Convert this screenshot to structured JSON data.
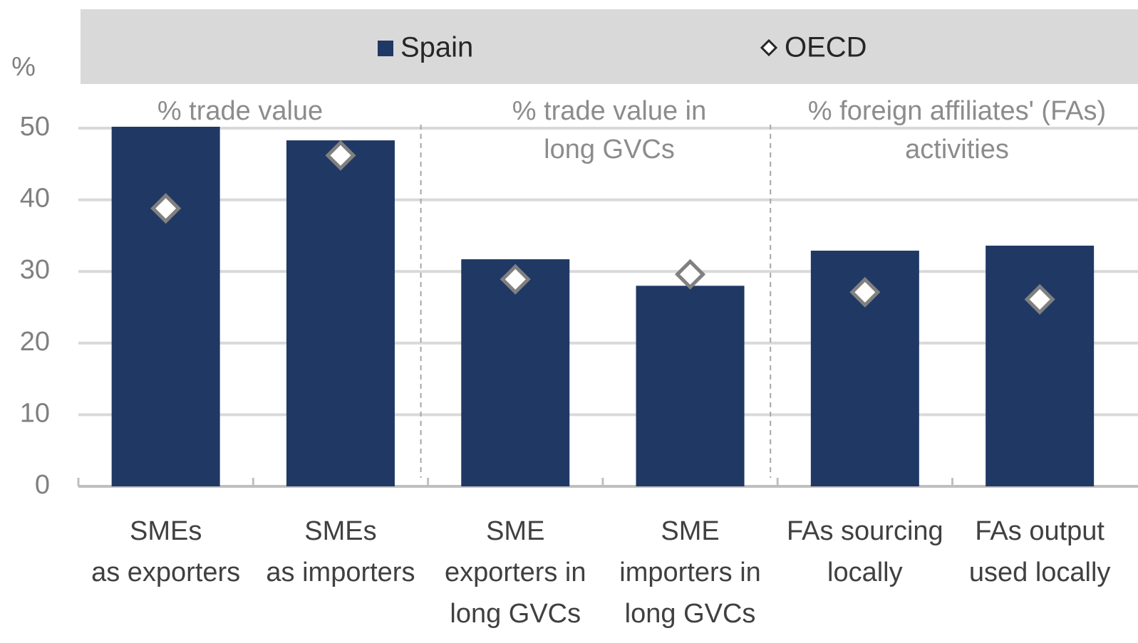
{
  "chart_data": {
    "type": "bar",
    "y_label": "%",
    "categories": [
      "SMEs\nas exporters",
      "SMEs\nas importers",
      "SME\nexporters in\nlong GVCs",
      "SME\nimporters in\nlong GVCs",
      "FAs sourcing\nlocally",
      "FAs output\nused locally"
    ],
    "series": [
      {
        "name": "Spain",
        "color": "#203864",
        "marker": "bar",
        "values": [
          50.2,
          48.3,
          31.7,
          28.0,
          32.9,
          33.6
        ]
      },
      {
        "name": "OECD",
        "color": "#808080",
        "marker": "diamond",
        "values": [
          38.8,
          46.2,
          28.9,
          29.6,
          27.1,
          26.1
        ]
      }
    ],
    "annotations": [
      "% trade value",
      "% trade value in\nlong GVCs",
      "% foreign affiliates' (FAs)\nactivities"
    ],
    "ylim": [
      0,
      50
    ],
    "yticks": [
      0,
      10,
      20,
      30,
      40,
      50
    ],
    "grid": true,
    "legend": "top"
  }
}
